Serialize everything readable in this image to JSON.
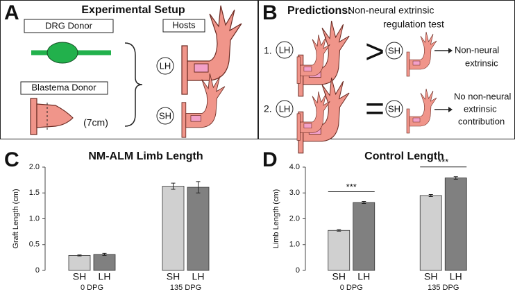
{
  "panel_a": {
    "label": "A",
    "title": "Experimental Setup",
    "drg_donor": "DRG Donor",
    "hosts": "Hosts",
    "blastema_donor": "Blastema Donor",
    "size": "(7cm)",
    "lh": "LH",
    "sh": "SH"
  },
  "panel_b": {
    "label": "B",
    "title": "Predictions:",
    "subtitle": [
      "Non-neural extrinsic",
      "regulation test"
    ],
    "rows": [
      {
        "number": "1.",
        "left": "LH",
        "symbol": ">",
        "right": "SH",
        "outcome": [
          "Non-neural",
          "extrinsic"
        ]
      },
      {
        "number": "2.",
        "left": "LH",
        "symbol": "=",
        "right": "SH",
        "outcome": [
          "No non-neural",
          "extrinsic",
          "contribution"
        ]
      }
    ]
  },
  "chart_data": [
    {
      "type": "bar",
      "label": "C",
      "title": "NM-ALM Limb Length",
      "y_label": "Graft Length (cm)",
      "categories": [
        "0 DPG",
        "135 DPG"
      ],
      "series": [
        {
          "name": "SH",
          "color": "#d0d0d0",
          "values": [
            0.29,
            1.63
          ],
          "errors": [
            0.01,
            0.06
          ]
        },
        {
          "name": "LH",
          "color": "#808080",
          "values": [
            0.31,
            1.61
          ],
          "errors": [
            0.02,
            0.11
          ]
        }
      ],
      "ylim": [
        0,
        2
      ],
      "yticks": [
        0,
        0.5,
        {
          "value": 1,
          "label": "1.0"
        },
        1.5,
        {
          "value": 2,
          "label": "2.0"
        }
      ]
    },
    {
      "type": "bar",
      "label": "D",
      "title": "Control Length",
      "y_label": "Limb Length (cm)",
      "categories": [
        "0 DPG",
        "135 DPG"
      ],
      "series": [
        {
          "name": "SH",
          "color": "#d0d0d0",
          "values": [
            1.55,
            2.9
          ],
          "errors": [
            0.03,
            0.04
          ]
        },
        {
          "name": "LH",
          "color": "#808080",
          "values": [
            2.63,
            3.58
          ],
          "errors": [
            0.04,
            0.05
          ]
        }
      ],
      "significance": [
        "***",
        "***"
      ],
      "ylim": [
        0,
        4
      ],
      "yticks": [
        0,
        {
          "value": 1,
          "label": "1.0"
        },
        {
          "value": 2,
          "label": "2.0"
        },
        {
          "value": 3,
          "label": "3.0"
        },
        {
          "value": 4,
          "label": "4.0"
        }
      ]
    }
  ]
}
